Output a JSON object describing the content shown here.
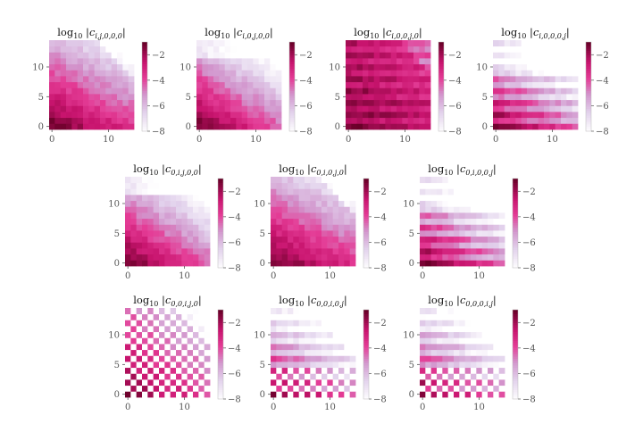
{
  "figure": {
    "colorbar_ticks": [
      "−2",
      "−4",
      "−6",
      "−8"
    ],
    "axis_ticks_x": [
      "0",
      "10"
    ],
    "axis_ticks_y": [
      "0",
      "5",
      "10"
    ]
  },
  "chart_data": [
    {
      "type": "heatmap",
      "title": "log10 |c_{i,j,0,0,0}|",
      "title_sub": "i,j,0,0,0",
      "pattern": "corner_decay",
      "n": 15,
      "zlim": [
        -8,
        -1
      ],
      "colorbar": "magenta"
    },
    {
      "type": "heatmap",
      "title": "log10 |c_{i,0,j,0,0}|",
      "title_sub": "i,0,j,0,0",
      "pattern": "diag_fast",
      "n": 15,
      "zlim": [
        -8,
        -1
      ],
      "colorbar": "magenta"
    },
    {
      "type": "heatmap",
      "title": "log10 |c_{i,0,0,j,0}|",
      "title_sub": "i,0,0,j,0",
      "pattern": "banded_strong",
      "n": 15,
      "zlim": [
        -8,
        -1
      ],
      "colorbar": "magenta"
    },
    {
      "type": "heatmap",
      "title": "log10 |c_{i,0,0,0,j}|",
      "title_sub": "i,0,0,0,j",
      "pattern": "banded_weak",
      "n": 15,
      "zlim": [
        -8,
        -1
      ],
      "colorbar": "magenta"
    },
    {
      "type": "heatmap",
      "title": "log10 |c_{0,i,j,0,0}|",
      "title_sub": "0,i,j,0,0",
      "pattern": "diag_fast",
      "n": 15,
      "zlim": [
        -8,
        -1
      ],
      "colorbar": "magenta"
    },
    {
      "type": "heatmap",
      "title": "log10 |c_{0,i,0,j,0}|",
      "title_sub": "0,i,0,j,0",
      "pattern": "corner_decay",
      "n": 15,
      "zlim": [
        -8,
        -1
      ],
      "colorbar": "magenta"
    },
    {
      "type": "heatmap",
      "title": "log10 |c_{0,i,0,0,j}|",
      "title_sub": "0,i,0,0,j",
      "pattern": "banded_weak",
      "n": 15,
      "zlim": [
        -8,
        -1
      ],
      "colorbar": "magenta"
    },
    {
      "type": "heatmap",
      "title": "log10 |c_{0,0,i,j,0}|",
      "title_sub": "0,0,i,j,0",
      "pattern": "checker",
      "n": 15,
      "zlim": [
        -8,
        -1
      ],
      "colorbar": "magenta"
    },
    {
      "type": "heatmap",
      "title": "log10 |c_{0,0,i,0,j}|",
      "title_sub": "0,0,i,0,j",
      "pattern": "checker_rows",
      "n": 15,
      "zlim": [
        -8,
        -1
      ],
      "colorbar": "magenta"
    },
    {
      "type": "heatmap",
      "title": "log10 |c_{0,0,0,i,j}|",
      "title_sub": "0,0,0,i,j",
      "pattern": "checker_rows",
      "n": 15,
      "zlim": [
        -8,
        -1
      ],
      "colorbar": "magenta"
    }
  ]
}
